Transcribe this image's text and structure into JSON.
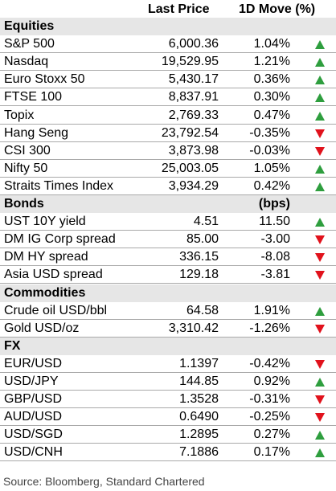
{
  "header": {
    "col_price": "Last Price",
    "col_move": "1D Move (%)"
  },
  "sections": [
    {
      "title": "Equities",
      "unit": "",
      "rows": [
        {
          "name": "S&P 500",
          "price": "6,000.36",
          "move": "1.04%",
          "dir": "up"
        },
        {
          "name": "Nasdaq",
          "price": "19,529.95",
          "move": "1.21%",
          "dir": "up"
        },
        {
          "name": "Euro Stoxx 50",
          "price": "5,430.17",
          "move": "0.36%",
          "dir": "up"
        },
        {
          "name": "FTSE 100",
          "price": "8,837.91",
          "move": "0.30%",
          "dir": "up"
        },
        {
          "name": "Topix",
          "price": "2,769.33",
          "move": "0.47%",
          "dir": "up"
        },
        {
          "name": "Hang Seng",
          "price": "23,792.54",
          "move": "-0.35%",
          "dir": "down"
        },
        {
          "name": "CSI 300",
          "price": "3,873.98",
          "move": "-0.03%",
          "dir": "down"
        },
        {
          "name": "Nifty 50",
          "price": "25,003.05",
          "move": "1.05%",
          "dir": "up"
        },
        {
          "name": "Straits Times Index",
          "price": "3,934.29",
          "move": "0.42%",
          "dir": "up"
        }
      ]
    },
    {
      "title": "Bonds",
      "unit": "(bps)",
      "rows": [
        {
          "name": "UST 10Y yield",
          "price": "4.51",
          "move": "11.50",
          "dir": "up"
        },
        {
          "name": "DM IG Corp spread",
          "price": "85.00",
          "move": "-3.00",
          "dir": "down"
        },
        {
          "name": "DM HY spread",
          "price": "336.15",
          "move": "-8.08",
          "dir": "down"
        },
        {
          "name": "Asia USD spread",
          "price": "129.18",
          "move": "-3.81",
          "dir": "down"
        }
      ]
    },
    {
      "title": "Commodities",
      "unit": "",
      "rows": [
        {
          "name": "Crude oil USD/bbl",
          "price": "64.58",
          "move": "1.91%",
          "dir": "up"
        },
        {
          "name": "Gold USD/oz",
          "price": "3,310.42",
          "move": "-1.26%",
          "dir": "down"
        }
      ]
    },
    {
      "title": "FX",
      "unit": "",
      "rows": [
        {
          "name": "EUR/USD",
          "price": "1.1397",
          "move": "-0.42%",
          "dir": "down"
        },
        {
          "name": "USD/JPY",
          "price": "144.85",
          "move": "0.92%",
          "dir": "up"
        },
        {
          "name": "GBP/USD",
          "price": "1.3528",
          "move": "-0.31%",
          "dir": "down"
        },
        {
          "name": "AUD/USD",
          "price": "0.6490",
          "move": "-0.25%",
          "dir": "down"
        },
        {
          "name": "USD/SGD",
          "price": "1.2895",
          "move": "0.27%",
          "dir": "up"
        },
        {
          "name": "USD/CNH",
          "price": "7.1886",
          "move": "0.17%",
          "dir": "up"
        }
      ]
    }
  ],
  "source": "Source: Bloomberg, Standard Chartered",
  "colors": {
    "up": "#2e9e3e",
    "down": "#e1121c",
    "section_bg": "#e6e6e6"
  }
}
